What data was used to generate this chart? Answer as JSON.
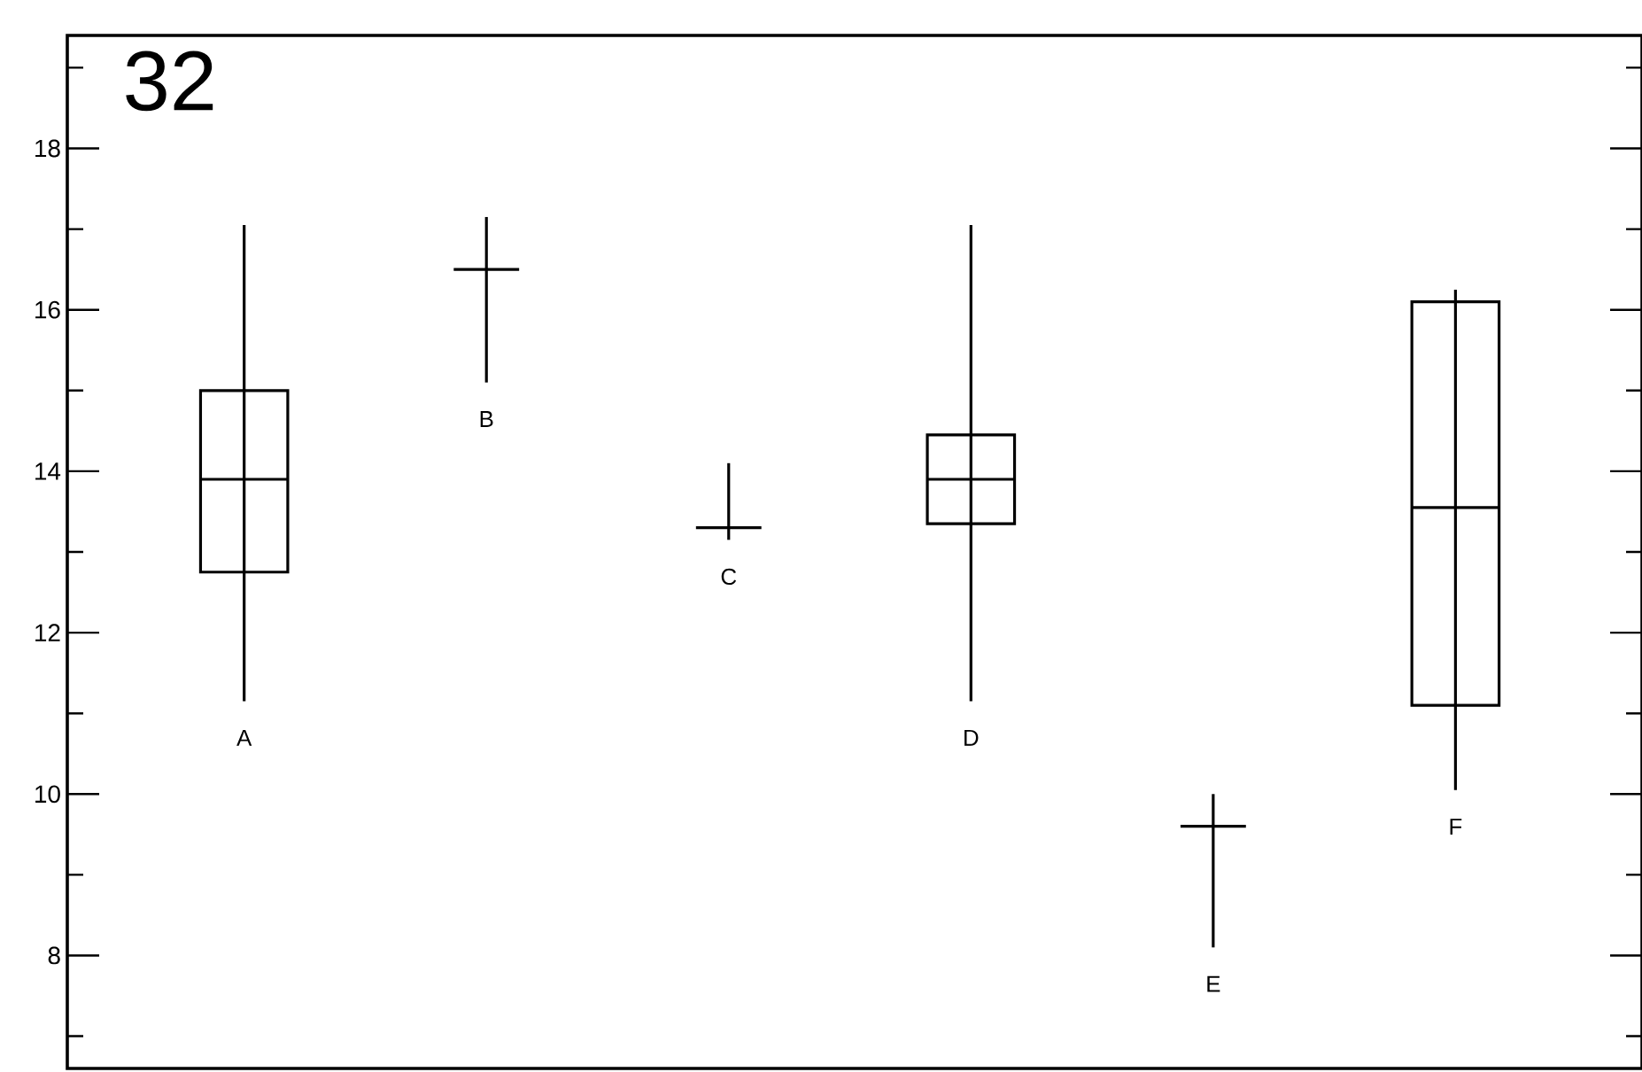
{
  "chart_data": {
    "type": "box",
    "title": "32",
    "categories": [
      "A",
      "B",
      "C",
      "D",
      "E",
      "F"
    ],
    "boxes": [
      {
        "low": 11.15,
        "q1": 12.75,
        "median": 13.9,
        "q3": 15.0,
        "high": 17.05
      },
      {
        "low": 15.1,
        "q1": 16.5,
        "median": 16.5,
        "q3": 16.5,
        "high": 17.15
      },
      {
        "low": 13.15,
        "q1": 13.3,
        "median": 13.3,
        "q3": 13.3,
        "high": 14.1
      },
      {
        "low": 11.15,
        "q1": 13.35,
        "median": 13.9,
        "q3": 14.45,
        "high": 17.05
      },
      {
        "low": 8.1,
        "q1": 9.6,
        "median": 9.6,
        "q3": 9.6,
        "high": 10.0
      },
      {
        "low": 10.05,
        "q1": 11.1,
        "median": 13.55,
        "q3": 16.1,
        "high": 16.25
      }
    ],
    "color": "#000000",
    "ylim": [
      6.6,
      19.4
    ],
    "yticks": [
      {
        "value": 7,
        "label": null
      },
      8,
      {
        "value": 9,
        "label": null
      },
      10,
      {
        "value": 11,
        "label": null
      },
      12,
      {
        "value": 13,
        "label": null
      },
      14,
      {
        "value": 15,
        "label": null
      },
      16,
      {
        "value": 17,
        "label": null
      },
      18,
      {
        "value": 19,
        "label": null
      }
    ],
    "grid": false
  }
}
